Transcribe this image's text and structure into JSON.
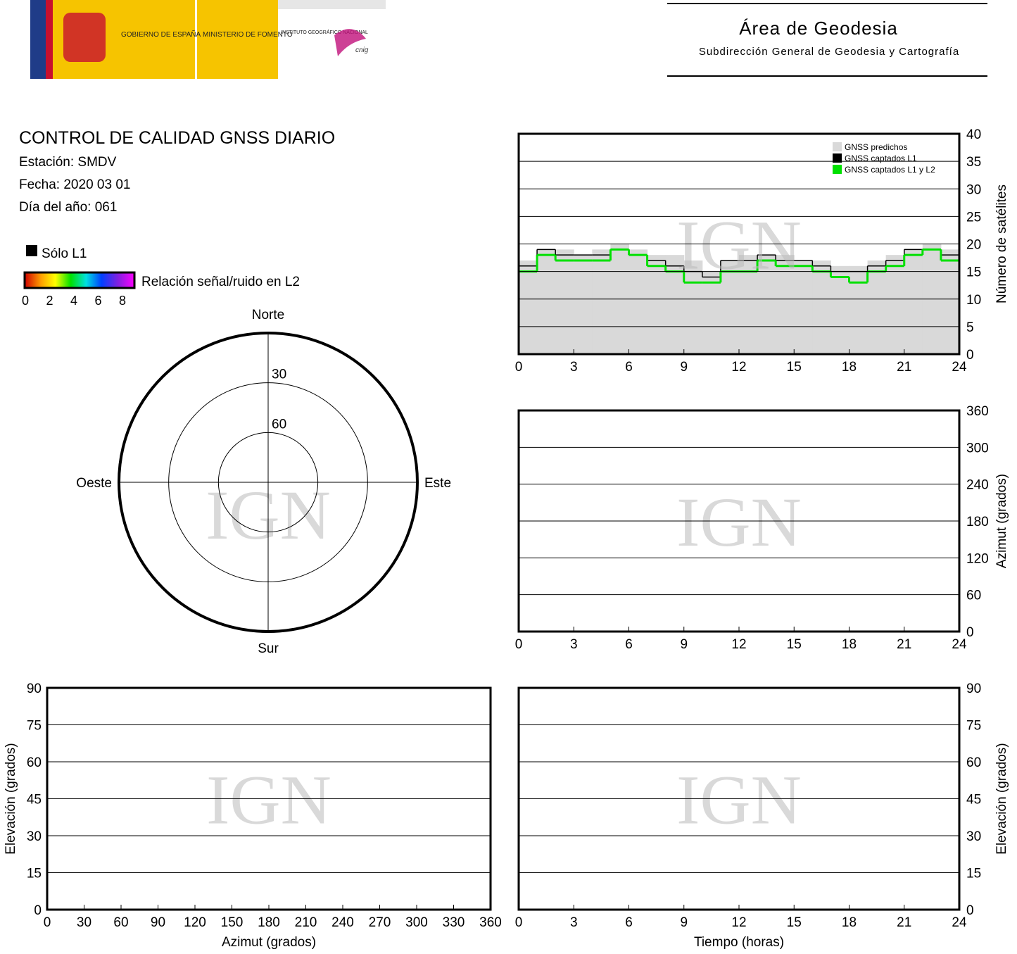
{
  "header": {
    "logo_gobierno": "GOBIERNO DE ESPAÑA",
    "logo_ministerio": "MINISTERIO DE FOMENTO",
    "logo_instituto": "INSTITUTO GEOGRÁFICO NACIONAL",
    "logo_cnig": "cnig",
    "title": "Área de Geodesia",
    "subtitle": "Subdirección General de Geodesia y Cartografía"
  },
  "report": {
    "title": "CONTROL DE CALIDAD GNSS DIARIO",
    "station": "Estación: SMDV",
    "date": "Fecha: 2020 03 01",
    "doy": "Día del año: 061",
    "legend_l1": "Sólo L1",
    "legend_snr": "Relación señal/ruido en L2",
    "snr_ticks": [
      0,
      2,
      4,
      6,
      8
    ]
  },
  "chart_data": [
    {
      "type": "step",
      "watermark": "IGN",
      "y_label": "Número de satélites",
      "xlim": [
        0,
        24
      ],
      "xticks": [
        0,
        3,
        6,
        9,
        12,
        15,
        18,
        21,
        24
      ],
      "ylim": [
        0,
        40
      ],
      "yticks": [
        0,
        5,
        10,
        15,
        20,
        25,
        30,
        35,
        40
      ],
      "grid": true,
      "x": [
        0,
        1,
        2,
        3,
        4,
        5,
        6,
        7,
        8,
        9,
        10,
        11,
        12,
        13,
        14,
        15,
        16,
        17,
        18,
        19,
        20,
        21,
        22,
        23
      ],
      "series": [
        {
          "name": "GNSS predichos",
          "color": "#d9d9d9",
          "values": [
            17,
            19,
            19,
            18,
            19,
            20,
            19,
            18,
            18,
            17,
            15,
            17,
            18,
            18,
            18,
            17,
            17,
            16,
            16,
            17,
            18,
            19,
            20,
            19
          ]
        },
        {
          "name": "GNSS captados L1",
          "color": "#000000",
          "values": [
            16,
            19,
            18,
            18,
            18,
            19,
            18,
            17,
            16,
            15,
            14,
            17,
            17,
            18,
            17,
            17,
            16,
            15,
            15,
            16,
            17,
            19,
            19,
            18
          ]
        },
        {
          "name": "GNSS captados L1 y L2",
          "color": "#00e000",
          "values": [
            15,
            18,
            17,
            17,
            17,
            19,
            18,
            16,
            15,
            13,
            13,
            15,
            15,
            17,
            16,
            16,
            15,
            14,
            13,
            15,
            16,
            18,
            19,
            17
          ]
        }
      ]
    },
    {
      "type": "polar",
      "watermark": "IGN",
      "rlim": [
        90,
        0
      ],
      "rings": [
        30,
        60
      ],
      "directions": [
        "Norte",
        "Este",
        "Sur",
        "Oeste"
      ]
    },
    {
      "type": "tracks",
      "watermark": "IGN",
      "y_label": "Azimut (grados)",
      "xlim": [
        0,
        24
      ],
      "xticks": [
        0,
        3,
        6,
        9,
        12,
        15,
        18,
        21,
        24
      ],
      "ylim": [
        0,
        360
      ],
      "yticks": [
        0,
        60,
        120,
        180,
        240,
        300,
        360
      ],
      "grid": true
    },
    {
      "type": "tracks",
      "watermark": "IGN",
      "x_label": "Azimut (grados)",
      "y_label": "Elevación (grados)",
      "xlim": [
        0,
        360
      ],
      "xticks": [
        0,
        30,
        60,
        90,
        120,
        150,
        180,
        210,
        240,
        270,
        300,
        330,
        360
      ],
      "ylim": [
        0,
        90
      ],
      "yticks": [
        0,
        15,
        30,
        45,
        60,
        75,
        90
      ],
      "grid": true
    },
    {
      "type": "tracks",
      "watermark": "IGN",
      "x_label": "Tiempo (horas)",
      "y_label": "Elevación (grados)",
      "xlim": [
        0,
        24
      ],
      "xticks": [
        0,
        3,
        6,
        9,
        12,
        15,
        18,
        21,
        24
      ],
      "ylim": [
        0,
        90
      ],
      "yticks": [
        0,
        15,
        30,
        45,
        60,
        75,
        90
      ],
      "grid": true
    }
  ]
}
